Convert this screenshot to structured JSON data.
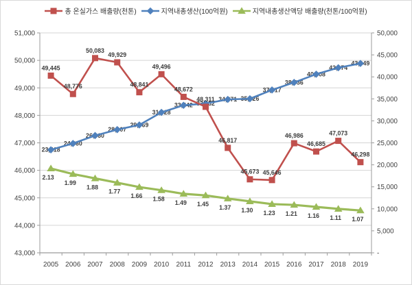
{
  "chart_data": {
    "type": "line",
    "categories": [
      "2005",
      "2006",
      "2007",
      "2008",
      "2009",
      "2010",
      "2011",
      "2012",
      "2013",
      "2014",
      "2015",
      "2016",
      "2017",
      "2018",
      "2019"
    ],
    "left_axis": {
      "min": 43000,
      "max": 51000,
      "step": 1000,
      "labels": [
        "43,000",
        "44,000",
        "45,000",
        "46,000",
        "47,000",
        "48,000",
        "49,000",
        "50,000",
        "51,000"
      ]
    },
    "right_axis": {
      "min": 0,
      "max": 50000,
      "step": 5000,
      "labels": [
        "-",
        "5,000",
        "10,000",
        "15,000",
        "20,000",
        "25,000",
        "30,000",
        "35,000",
        "40,000",
        "45,000",
        "50,000"
      ]
    },
    "grid": true,
    "legend_position": "top",
    "series": [
      {
        "name": "총 온실가스 배출량(천톤)",
        "color": "#C0504D",
        "marker": "square",
        "axis": "left",
        "label_pos": "above",
        "value_scale": 1,
        "values": [
          49445,
          48776,
          50083,
          49929,
          48841,
          49496,
          48672,
          48311,
          46817,
          45673,
          45646,
          46986,
          46685,
          47073,
          46298
        ],
        "labels": [
          "49,445",
          "48,776",
          "50,083",
          "49,929",
          "48,841",
          "49,496",
          "48,672",
          "48,311",
          "46,817",
          "45,673",
          "45,646",
          "46,986",
          "46,685",
          "47,073",
          "46,298"
        ]
      },
      {
        "name": "지역내총생산(100억원)",
        "color": "#4F81BD",
        "marker": "diamond",
        "axis": "right",
        "label_pos": "center",
        "value_scale": 1,
        "values": [
          23418,
          24860,
          26660,
          28007,
          29069,
          31928,
          33542,
          33932,
          34871,
          35026,
          37017,
          38736,
          40608,
          42074,
          43049
        ],
        "labels": [
          "23,418",
          "24,860",
          "26,660",
          "28,007",
          "29,069",
          "31,928",
          "33,542",
          "33,932",
          "34,871",
          "35,026",
          "37,017",
          "38,736",
          "40,608",
          "42,074",
          "43,049"
        ]
      },
      {
        "name": "지역내총생산액당 배출량(천톤/100억원)",
        "color": "#9BBB59",
        "marker": "triangle",
        "axis": "right",
        "label_pos": "below",
        "value_scale": 9000,
        "values": [
          2.13,
          1.99,
          1.88,
          1.77,
          1.66,
          1.58,
          1.49,
          1.45,
          1.37,
          1.3,
          1.23,
          1.21,
          1.16,
          1.11,
          1.07
        ],
        "labels": [
          "2.13",
          "1.99",
          "1.88",
          "1.77",
          "1.66",
          "1.58",
          "1.49",
          "1.45",
          "1.37",
          "1.30",
          "1.23",
          "1.21",
          "1.16",
          "1.11",
          "1.07"
        ]
      }
    ],
    "colors": {
      "grid": "#d4d4d4",
      "spine": "#9b9b9b",
      "axis_text": "#3f3f3f",
      "data_label_text": "#3d3d3d"
    }
  }
}
